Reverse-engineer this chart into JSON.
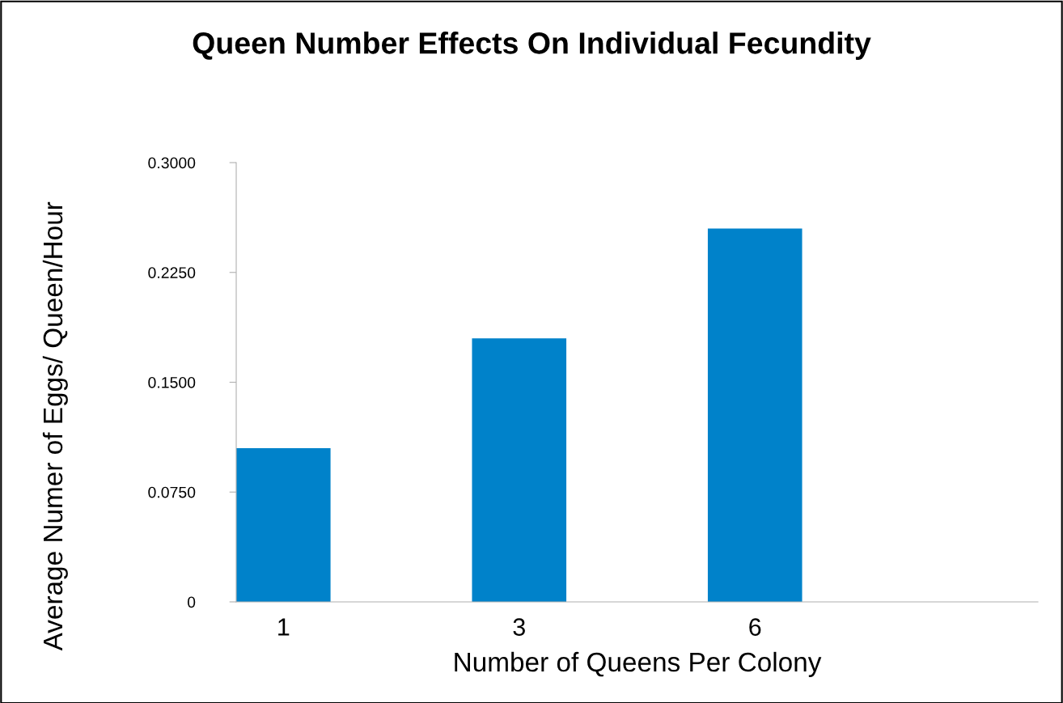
{
  "chart_data": {
    "type": "bar",
    "title": "Queen Number Effects On Individual Fecundity",
    "xlabel": "Number of Queens Per Colony",
    "ylabel": "Average Numer of Eggs/ Queen/Hour",
    "categories": [
      "1",
      "3",
      "6",
      null
    ],
    "values": [
      0.105,
      0.18,
      0.255,
      null
    ],
    "color": "#0082ca",
    "ylim": [
      0,
      0.3
    ],
    "yticks": [
      0,
      {
        "value": 0.075,
        "label": "0.0750"
      },
      {
        "value": 0.15,
        "label": "0.1500"
      },
      {
        "value": 0.225,
        "label": "0.2250"
      },
      {
        "value": 0.3,
        "label": "0.3000"
      }
    ],
    "grid": false
  }
}
